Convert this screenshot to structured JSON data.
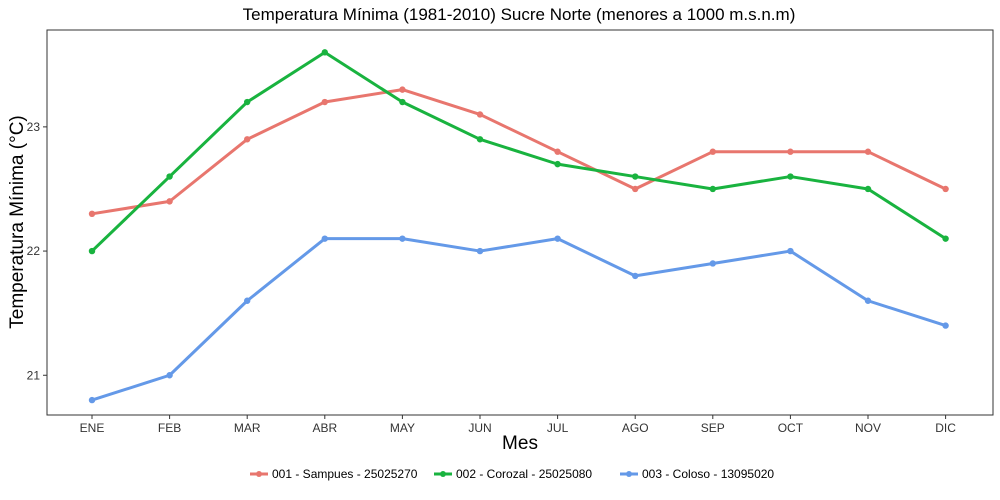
{
  "chart_data": {
    "type": "line",
    "title": "Temperatura Mínima (1981-2010) Sucre Norte (menores a 1000 m.s.n.m)",
    "xlabel": "Mes",
    "ylabel": "Temperatura Mínima (°C)",
    "categories": [
      "ENE",
      "FEB",
      "MAR",
      "ABR",
      "MAY",
      "JUN",
      "JUL",
      "AGO",
      "SEP",
      "OCT",
      "NOV",
      "DIC"
    ],
    "yticks": [
      21,
      22,
      23
    ],
    "ylim": [
      20.68,
      23.78
    ],
    "grid": false,
    "legend_position": "bottom",
    "series": [
      {
        "name": "001 - Sampues - 25025270",
        "color": "#E8766E",
        "values": [
          22.3,
          22.4,
          22.9,
          23.2,
          23.3,
          23.1,
          22.8,
          22.5,
          22.8,
          22.8,
          22.8,
          22.5
        ]
      },
      {
        "name": "002 - Corozal - 25025080",
        "color": "#19B33F",
        "values": [
          22.0,
          22.6,
          23.2,
          23.6,
          23.2,
          22.9,
          22.7,
          22.6,
          22.5,
          22.6,
          22.5,
          22.1
        ]
      },
      {
        "name": "003 - Coloso - 13095020",
        "color": "#6499E8",
        "values": [
          20.8,
          21.0,
          21.6,
          22.1,
          22.1,
          22.0,
          22.1,
          21.8,
          21.9,
          22.0,
          21.6,
          21.4
        ]
      }
    ]
  }
}
